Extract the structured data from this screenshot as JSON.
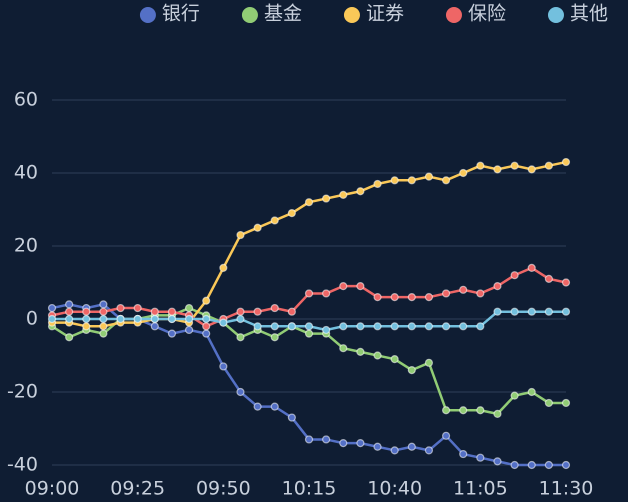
{
  "chart_data": {
    "type": "line",
    "categories": [
      "09:00",
      null,
      null,
      null,
      null,
      "09:25",
      null,
      null,
      null,
      null,
      "09:50",
      null,
      null,
      null,
      null,
      "10:15",
      null,
      null,
      null,
      null,
      "10:40",
      null,
      null,
      null,
      null,
      "11:05",
      null,
      null,
      null,
      null,
      "11:30"
    ],
    "series": [
      {
        "name": "银行",
        "color": "#5470c6",
        "values": [
          3,
          4,
          3,
          4,
          0,
          0,
          -2,
          -4,
          -3,
          -4,
          -13,
          -20,
          -24,
          -24,
          -27,
          -33,
          -33,
          -34,
          -34,
          -35,
          -36,
          -35,
          -36,
          -32,
          -37,
          -38,
          -39,
          -40,
          -40,
          -40,
          -40
        ]
      },
      {
        "name": "基金",
        "color": "#91cc75",
        "values": [
          -2,
          -5,
          -3,
          -4,
          0,
          0,
          1,
          1,
          3,
          1,
          -1,
          -5,
          -3,
          -5,
          -2,
          -4,
          -4,
          -8,
          -9,
          -10,
          -11,
          -14,
          -12,
          -25,
          -25,
          -25,
          -26,
          -21,
          -20,
          -23,
          -23
        ]
      },
      {
        "name": "证券",
        "color": "#fac858",
        "values": [
          -1,
          -1,
          -2,
          -2,
          -1,
          -1,
          0,
          0,
          -1,
          5,
          14,
          23,
          25,
          27,
          29,
          32,
          33,
          34,
          35,
          37,
          38,
          38,
          39,
          38,
          40,
          42,
          41,
          42,
          41,
          42,
          43
        ]
      },
      {
        "name": "保险",
        "color": "#ee6666",
        "values": [
          1,
          2,
          2,
          2,
          3,
          3,
          2,
          2,
          1,
          -2,
          0,
          2,
          2,
          3,
          2,
          7,
          7,
          9,
          9,
          6,
          6,
          6,
          6,
          7,
          8,
          7,
          9,
          12,
          14,
          11,
          10
        ]
      },
      {
        "name": "其他",
        "color": "#73c0de",
        "values": [
          0,
          0,
          0,
          0,
          0,
          0,
          0,
          0,
          0,
          0,
          -1,
          0,
          -2,
          -2,
          -2,
          -2,
          -3,
          -2,
          -2,
          -2,
          -2,
          -2,
          -2,
          -2,
          -2,
          -2,
          2,
          2,
          2,
          2,
          2
        ]
      }
    ],
    "ylim": [
      -40,
      60
    ],
    "yticks": [
      -40,
      -20,
      0,
      20,
      40,
      60
    ],
    "grid": true,
    "legend": "top-right"
  }
}
